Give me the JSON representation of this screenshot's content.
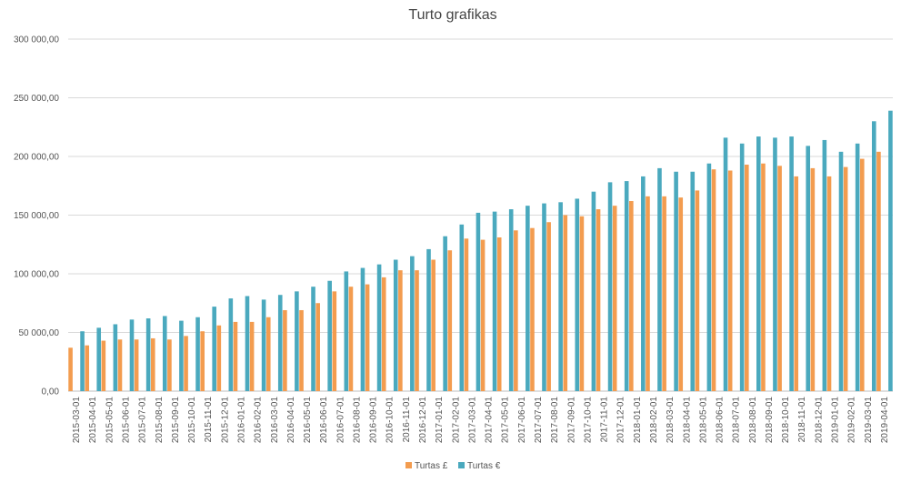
{
  "chart_data": {
    "type": "bar",
    "title": "Turto grafikas",
    "xlabel": "",
    "ylabel": "",
    "ylim": [
      0,
      300000
    ],
    "yticks": [
      "0,00",
      "50 000,00",
      "100 000,00",
      "150 000,00",
      "200 000,00",
      "250 000,00",
      "300 000,00"
    ],
    "grid": true,
    "legend_position": "bottom",
    "categories": [
      "2015-03-01",
      "2015-04-01",
      "2015-05-01",
      "2015-06-01",
      "2015-07-01",
      "2015-08-01",
      "2015-09-01",
      "2015-10-01",
      "2015-11-01",
      "2015-12-01",
      "2016-01-01",
      "2016-02-01",
      "2016-03-01",
      "2016-04-01",
      "2016-05-01",
      "2016-06-01",
      "2016-07-01",
      "2016-08-01",
      "2016-09-01",
      "2016-10-01",
      "2016-11-01",
      "2016-12-01",
      "2017-01-01",
      "2017-02-01",
      "2017-03-01",
      "2017-04-01",
      "2017-05-01",
      "2017-06-01",
      "2017-07-01",
      "2017-08-01",
      "2017-09-01",
      "2017-10-01",
      "2017-11-01",
      "2017-12-01",
      "2018-01-01",
      "2018-02-01",
      "2018-03-01",
      "2018-04-01",
      "2018-05-01",
      "2018-06-01",
      "2018-07-01",
      "2018-08-01",
      "2018-09-01",
      "2018-10-01",
      "2018-11-01",
      "2018-12-01",
      "2019-01-01",
      "2019-02-01",
      "2019-03-01",
      "2019-04-01"
    ],
    "series": [
      {
        "name": "Turtas £",
        "color": "#f39c4f",
        "values": [
          37000,
          39000,
          43000,
          44000,
          44000,
          45000,
          44000,
          47000,
          51000,
          56000,
          59000,
          59000,
          63000,
          69000,
          69000,
          75000,
          85000,
          89000,
          91000,
          97000,
          103000,
          103000,
          112000,
          120000,
          130000,
          129000,
          131000,
          137000,
          139000,
          144000,
          150000,
          149000,
          155000,
          158000,
          162000,
          166000,
          166000,
          165000,
          171000,
          189000,
          188000,
          193000,
          194000,
          192000,
          183000,
          190000,
          183000,
          191000,
          198000,
          204000
        ]
      },
      {
        "name": "Turtas €",
        "color": "#4aa9be",
        "values": [
          51000,
          54000,
          57000,
          61000,
          62000,
          64000,
          60000,
          63000,
          72000,
          79000,
          81000,
          78000,
          82000,
          85000,
          89000,
          94000,
          102000,
          105000,
          108000,
          112000,
          115000,
          121000,
          132000,
          142000,
          152000,
          153000,
          155000,
          158000,
          160000,
          161000,
          164000,
          170000,
          178000,
          179000,
          183000,
          190000,
          187000,
          187000,
          194000,
          216000,
          211000,
          217000,
          216000,
          217000,
          209000,
          214000,
          204000,
          211000,
          230000,
          239000
        ]
      }
    ]
  }
}
